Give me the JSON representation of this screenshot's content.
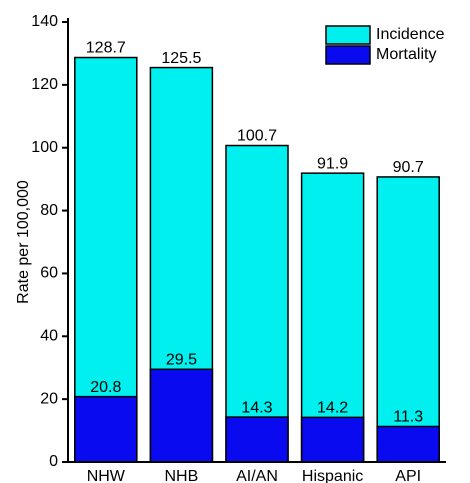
{
  "chart_data": {
    "type": "overlap-bar",
    "y_label": "Rate per 100,000",
    "categories": [
      "NHW",
      "NHB",
      "AI/AN",
      "Hispanic",
      "API"
    ],
    "series": [
      {
        "name": "Incidence",
        "color": "#00f0f0",
        "values": [
          128.7,
          125.5,
          100.7,
          91.9,
          90.7
        ]
      },
      {
        "name": "Mortality",
        "color": "#0a0af0",
        "values": [
          20.8,
          29.5,
          14.3,
          14.2,
          11.3
        ]
      }
    ],
    "ylim": [
      0,
      140
    ],
    "yticks": [
      0,
      20,
      40,
      60,
      80,
      100,
      120,
      140
    ],
    "legend": "top-right"
  }
}
